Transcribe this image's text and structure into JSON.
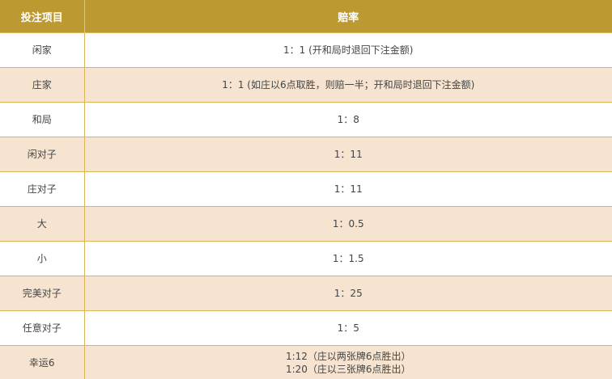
{
  "header": {
    "col1": "投注项目",
    "col2": "赔率"
  },
  "rows": [
    {
      "item": "闲家",
      "odds": "1：1 (开和局时退回下注金额)"
    },
    {
      "item": "庄家",
      "odds": "1：1 (如庄以6点取胜，则赔一半；开和局时退回下注金额)"
    },
    {
      "item": "和局",
      "odds": "1：8"
    },
    {
      "item": "闲对子",
      "odds": "1：11"
    },
    {
      "item": "庄对子",
      "odds": "1：11"
    },
    {
      "item": "大",
      "odds": "1：0.5"
    },
    {
      "item": "小",
      "odds": "1：1.5"
    },
    {
      "item": "完美对子",
      "odds": "1：25"
    },
    {
      "item": "任意对子",
      "odds": "1：5"
    },
    {
      "item": "幸运6",
      "odds": "1:12（庄以两张牌6点胜出）",
      "odds2": "1:20（庄以三张牌6点胜出）"
    }
  ],
  "colors": {
    "header": "#bd9a31",
    "alt_row": "#f6e4d0",
    "border": "#d8b656"
  }
}
